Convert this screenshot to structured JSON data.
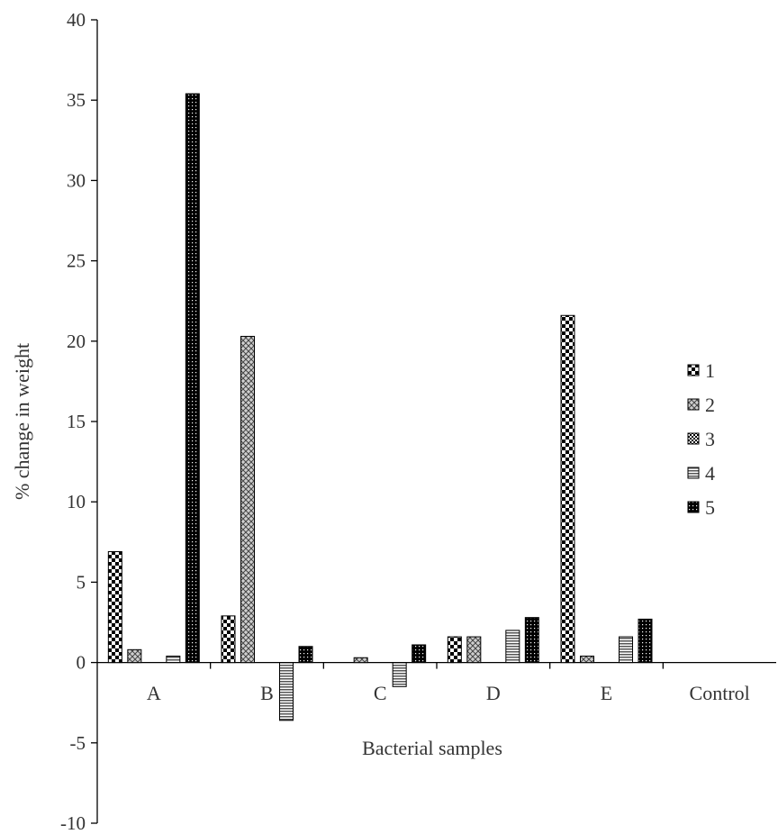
{
  "chart_data": {
    "type": "bar",
    "title": "",
    "xlabel": "Bacterial  samples",
    "ylabel": "% change  in weight",
    "ylim": [
      -10,
      40
    ],
    "yticks": [
      40,
      35,
      30,
      25,
      20,
      15,
      10,
      5,
      0,
      -5,
      -10
    ],
    "ytick_labels": [
      "40",
      "35",
      "30",
      "25",
      "20",
      "15",
      "10",
      "5",
      "0",
      "-5",
      "-10"
    ],
    "categories": [
      "A",
      "B",
      "C",
      "D",
      "E",
      "Control"
    ],
    "grid": false,
    "legend_position": "right",
    "series": [
      {
        "name": "1",
        "pattern": "checker",
        "values": [
          6.9,
          2.9,
          0,
          1.6,
          21.6,
          0
        ]
      },
      {
        "name": "2",
        "pattern": "crosshatch",
        "values": [
          0.8,
          20.3,
          0.3,
          1.6,
          0.4,
          0
        ]
      },
      {
        "name": "3",
        "pattern": "dense-checker",
        "values": [
          0,
          0,
          0,
          0,
          0,
          0
        ]
      },
      {
        "name": "4",
        "pattern": "horizontal-lines",
        "values": [
          0.4,
          -3.6,
          -1.5,
          2.0,
          1.6,
          0
        ]
      },
      {
        "name": "5",
        "pattern": "dots",
        "values": [
          35.4,
          1.0,
          1.1,
          2.8,
          2.7,
          0
        ]
      }
    ]
  }
}
